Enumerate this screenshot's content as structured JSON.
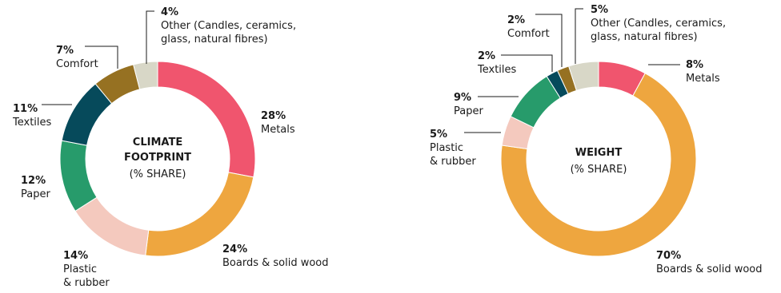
{
  "chart_data": [
    {
      "type": "pie",
      "variant": "donut",
      "center_title": [
        "CLIMATE",
        "FOOTPRINT"
      ],
      "center_subtitle": "(% SHARE)",
      "unit": "%",
      "slices": [
        {
          "key": "metals",
          "pct": "28%",
          "value": 28,
          "label": [
            "Metals"
          ],
          "color": "#f0556e"
        },
        {
          "key": "boards",
          "pct": "24%",
          "value": 24,
          "label": [
            "Boards & solid wood"
          ],
          "color": "#eea63f"
        },
        {
          "key": "plastic",
          "pct": "14%",
          "value": 14,
          "label": [
            "Plastic",
            "& rubber"
          ],
          "color": "#f4c9be"
        },
        {
          "key": "paper",
          "pct": "12%",
          "value": 12,
          "label": [
            "Paper"
          ],
          "color": "#279b6b"
        },
        {
          "key": "textiles",
          "pct": "11%",
          "value": 11,
          "label": [
            "Textiles"
          ],
          "color": "#064a5b"
        },
        {
          "key": "comfort",
          "pct": "7%",
          "value": 7,
          "label": [
            "Comfort"
          ],
          "color": "#967122"
        },
        {
          "key": "other",
          "pct": "4%",
          "value": 4,
          "label": [
            "Other (Candles, ceramics,",
            "glass, natural fibres)"
          ],
          "color": "#d8d7c7"
        }
      ]
    },
    {
      "type": "pie",
      "variant": "donut",
      "center_title": [
        "WEIGHT"
      ],
      "center_subtitle": "(% SHARE)",
      "unit": "%",
      "slices": [
        {
          "key": "metals",
          "pct": "8%",
          "value": 8,
          "label": [
            "Metals"
          ],
          "color": "#f0556e"
        },
        {
          "key": "boards",
          "pct": "70%",
          "value": 70,
          "label": [
            "Boards & solid wood"
          ],
          "color": "#eea63f"
        },
        {
          "key": "plastic",
          "pct": "5%",
          "value": 5,
          "label": [
            "Plastic",
            "& rubber"
          ],
          "color": "#f4c9be"
        },
        {
          "key": "paper",
          "pct": "9%",
          "value": 9,
          "label": [
            "Paper"
          ],
          "color": "#279b6b"
        },
        {
          "key": "textiles",
          "pct": "2%",
          "value": 2,
          "label": [
            "Textiles"
          ],
          "color": "#064a5b"
        },
        {
          "key": "comfort",
          "pct": "2%",
          "value": 2,
          "label": [
            "Comfort"
          ],
          "color": "#967122"
        },
        {
          "key": "other",
          "pct": "5%",
          "value": 5,
          "label": [
            "Other (Candles, ceramics,",
            "glass, natural fibres)"
          ],
          "color": "#d8d7c7"
        }
      ]
    }
  ]
}
